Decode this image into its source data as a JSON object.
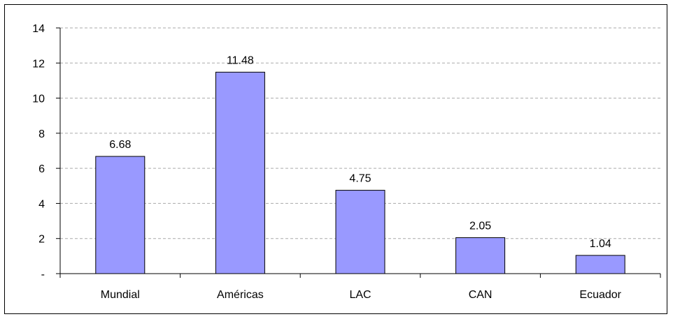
{
  "chart_data": {
    "type": "bar",
    "categories": [
      "Mundial",
      "Américas",
      "LAC",
      "CAN",
      "Ecuador"
    ],
    "values": [
      6.68,
      11.48,
      4.75,
      2.05,
      1.04
    ],
    "value_labels": [
      "6.68",
      "11.48",
      "4.75",
      "2.05",
      "1.04"
    ],
    "y_tick_labels": [
      "-",
      "2",
      "4",
      "6",
      "8",
      "10",
      "12",
      "14"
    ],
    "y_ticks": [
      0,
      2,
      4,
      6,
      8,
      10,
      12,
      14
    ],
    "ylim": [
      0,
      14
    ],
    "title": "",
    "xlabel": "",
    "ylabel": "",
    "grid": "horizontal dashed",
    "legend": "none",
    "colors": {
      "bar_fill": "#9999ff",
      "bar_stroke": "#000000",
      "grid": "#aaaaaa"
    }
  }
}
